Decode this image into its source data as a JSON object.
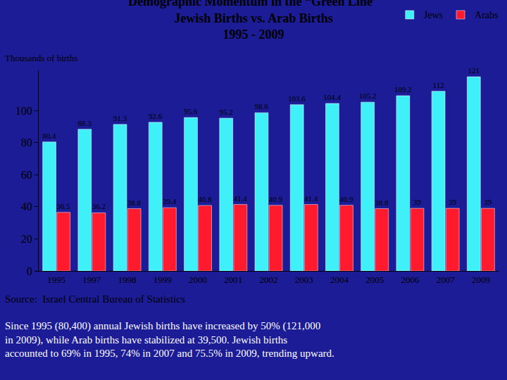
{
  "chart_data": {
    "type": "bar",
    "title": "Demographic Momentum in the “Green Line”",
    "subtitle": [
      "Jewish Births vs. Arab Births",
      "1995 - 2009"
    ],
    "ylabel": "Thousands of births",
    "categories": [
      "1995",
      "1997",
      "1998",
      "1999",
      "2000",
      "2001",
      "2002",
      "2003",
      "2004",
      "2005",
      "2006",
      "2007",
      "2009"
    ],
    "series": [
      {
        "name": "Jews",
        "color": "#3ff0f8",
        "values": [
          80.4,
          88.3,
          91.3,
          92.6,
          95.6,
          95.2,
          98.6,
          103.6,
          104.4,
          105.2,
          109.2,
          112,
          121
        ]
      },
      {
        "name": "Arabs",
        "color": "#ff1a2e",
        "values": [
          36.5,
          36.2,
          38.8,
          39.4,
          40.8,
          41.4,
          40.9,
          41.4,
          40.9,
          38.8,
          39,
          39,
          39
        ]
      }
    ],
    "ylim": [
      0,
      125
    ],
    "yticks": [
      0,
      20,
      40,
      60,
      80,
      100
    ],
    "grid": false,
    "legend": "top right",
    "data_labels": true,
    "annotations": {
      "source": "Source:  Israel Central Bureau of Statistics",
      "note": [
        "Since 1995 (80,400) annual Jewish births have increased by 50% (121,000",
        "in 2009), while Arab births have stabilized at 39,500. Jewish births",
        "accounted to 69% in 1995, 74% in 2007 and 75.5% in 2009, trending upward."
      ]
    }
  }
}
